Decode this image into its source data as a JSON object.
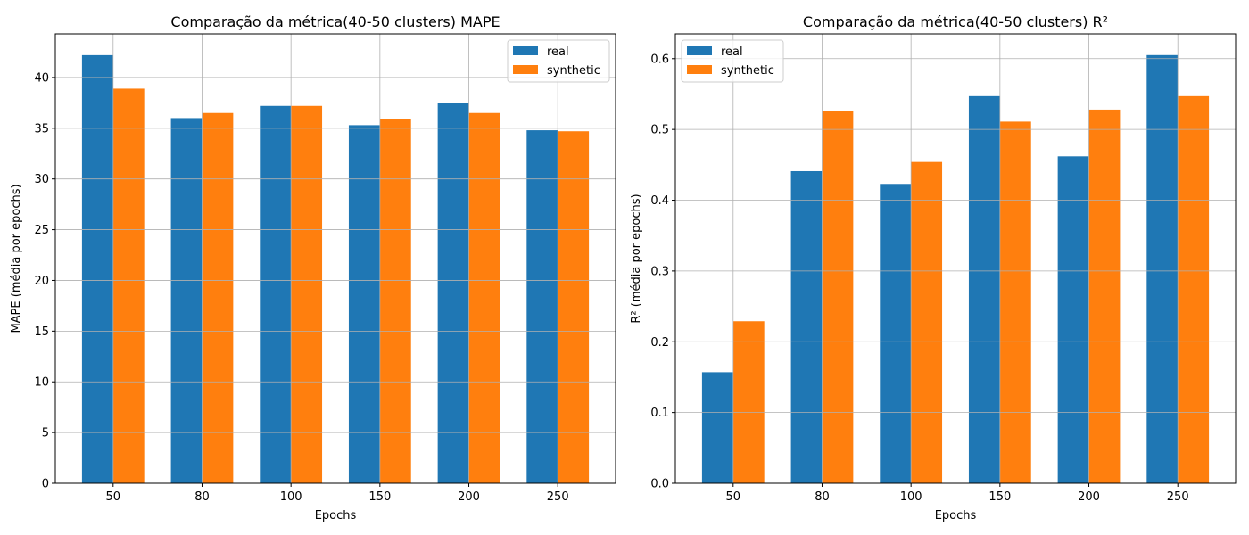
{
  "chart_data": [
    {
      "type": "bar",
      "title": "Comparação da métrica(40-50 clusters) MAPE",
      "xlabel": "Epochs",
      "ylabel": "MAPE (média por epochs)",
      "categories": [
        "50",
        "80",
        "100",
        "150",
        "200",
        "250"
      ],
      "series": [
        {
          "name": "real",
          "color": "#1f77b4",
          "values": [
            42.2,
            36.0,
            37.2,
            35.3,
            37.5,
            34.8
          ]
        },
        {
          "name": "synthetic",
          "color": "#ff7f0e",
          "values": [
            38.9,
            36.5,
            37.2,
            35.9,
            36.5,
            34.7
          ]
        }
      ],
      "ylim": [
        0,
        44.3
      ],
      "yticks": [
        0,
        5,
        10,
        15,
        20,
        25,
        30,
        35,
        40
      ],
      "ytick_labels": [
        "0",
        "5",
        "10",
        "15",
        "20",
        "25",
        "30",
        "35",
        "40"
      ],
      "grid": true,
      "legend": "upper right"
    },
    {
      "type": "bar",
      "title": "Comparação da métrica(40-50 clusters) R²",
      "xlabel": "Epochs",
      "ylabel": "R² (média por epochs)",
      "categories": [
        "50",
        "80",
        "100",
        "150",
        "200",
        "250"
      ],
      "series": [
        {
          "name": "real",
          "color": "#1f77b4",
          "values": [
            0.157,
            0.441,
            0.423,
            0.547,
            0.462,
            0.605
          ]
        },
        {
          "name": "synthetic",
          "color": "#ff7f0e",
          "values": [
            0.229,
            0.526,
            0.454,
            0.511,
            0.528,
            0.547
          ]
        }
      ],
      "ylim": [
        0,
        0.635
      ],
      "yticks": [
        0,
        0.1,
        0.2,
        0.3,
        0.4,
        0.5,
        0.6
      ],
      "ytick_labels": [
        "0.0",
        "0.1",
        "0.2",
        "0.3",
        "0.4",
        "0.5",
        "0.6"
      ],
      "grid": true,
      "legend": "upper left"
    }
  ]
}
